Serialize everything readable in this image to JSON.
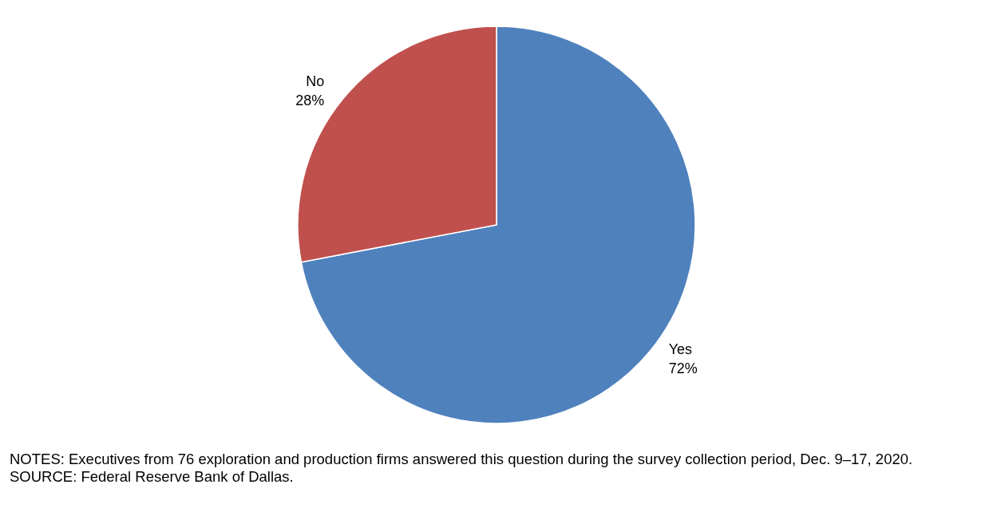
{
  "chart_data": {
    "type": "pie",
    "categories": [
      "Yes",
      "No"
    ],
    "values": [
      72,
      28
    ],
    "colors": [
      "#4f81bd",
      "#c0504d"
    ],
    "value_labels": [
      "72%",
      "28%"
    ],
    "legend": false,
    "annotations": [
      "NOTES: Executives from 76 exploration and production firms answered this question during the survey collection period, Dec. 9–17, 2020.",
      "SOURCE: Federal Reserve Bank of Dallas."
    ]
  }
}
